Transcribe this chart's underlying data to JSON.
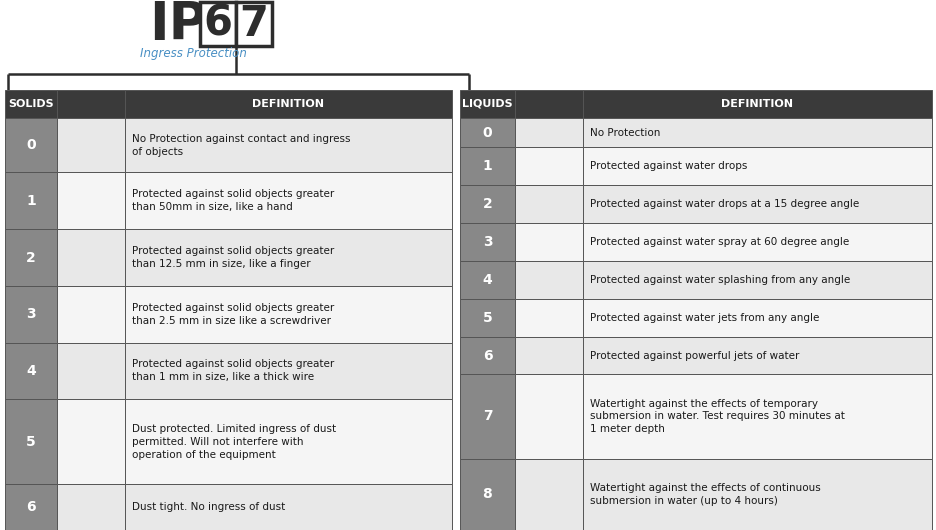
{
  "title_ip": "IP",
  "digits": [
    "6",
    "7"
  ],
  "subtitle": "Ingress Protection",
  "header_bg": "#3a3a3a",
  "header_text_color": "#ffffff",
  "row_bg_even": "#e2e2e2",
  "row_bg_odd": "#f0f0f0",
  "number_col_bg": "#888888",
  "number_text_color": "#ffffff",
  "border_color": "#555555",
  "solids_header": "SOLIDS",
  "liquids_header": "LIQUIDS",
  "definition_header": "DEFINITION",
  "ip_text_color": "#2d2d2d",
  "ingress_text_color": "#4a90c4",
  "box_outline_color": "#2d2d2d",
  "solids_rows": [
    {
      "num": "0",
      "def": "No Protection against contact and ingress\nof objects"
    },
    {
      "num": "1",
      "def": "Protected against solid objects greater\nthan 50mm in size, like a hand"
    },
    {
      "num": "2",
      "def": "Protected against solid objects greater\nthan 12.5 mm in size, like a finger"
    },
    {
      "num": "3",
      "def": "Protected against solid objects greater\nthan 2.5 mm in size like a screwdriver"
    },
    {
      "num": "4",
      "def": "Protected against solid objects greater\nthan 1 mm in size, like a thick wire"
    },
    {
      "num": "5",
      "def": "Dust protected. Limited ingress of dust\npermitted. Will not interfere with\noperation of the equipment"
    },
    {
      "num": "6",
      "def": "Dust tight. No ingress of dust"
    }
  ],
  "liquids_rows": [
    {
      "num": "0",
      "def": "No Protection"
    },
    {
      "num": "1",
      "def": "Protected against water drops"
    },
    {
      "num": "2",
      "def": "Protected against water drops at a 15 degree angle"
    },
    {
      "num": "3",
      "def": "Protected against water spray at 60 degree angle"
    },
    {
      "num": "4",
      "def": "Protected against water splashing from any angle"
    },
    {
      "num": "5",
      "def": "Protected against water jets from any angle"
    },
    {
      "num": "6",
      "def": "Protected against powerful jets of water"
    },
    {
      "num": "7",
      "def": "Watertight against the effects of temporary\nsubmersion in water. Test requires 30 minutes at\n1 meter depth"
    },
    {
      "num": "8",
      "def": "Watertight against the effects of continuous\nsubmersion in water (up to 4 hours)"
    }
  ]
}
